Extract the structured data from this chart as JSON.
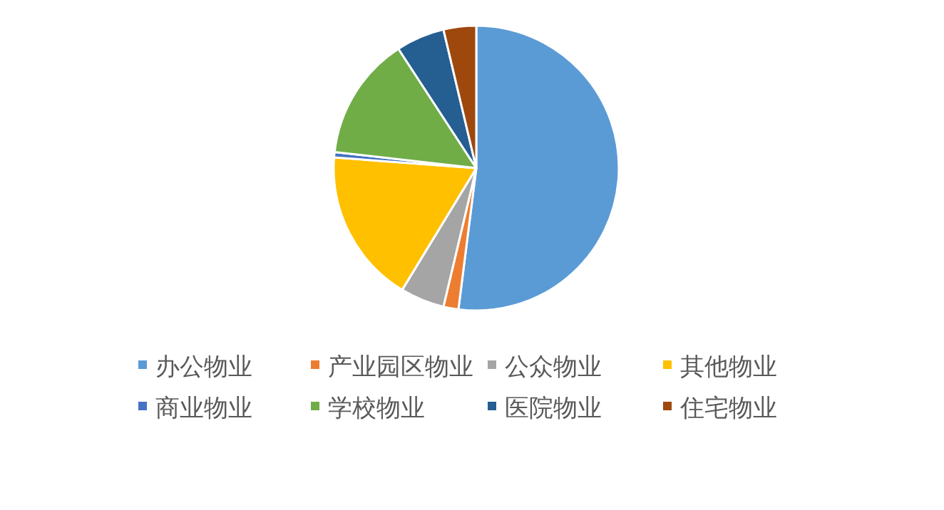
{
  "chart_data": {
    "type": "pie",
    "legend": "bottom",
    "categories": [
      "办公物业",
      "产业园区物业",
      "公众物业",
      "其他物业",
      "商业物业",
      "学校物业",
      "医院物业",
      "住宅物业"
    ],
    "values": [
      52,
      1.7,
      5,
      17.5,
      0.6,
      14,
      5.5,
      3.7
    ],
    "colors": [
      "#5b9bd5",
      "#ed7d31",
      "#a5a5a5",
      "#ffc000",
      "#4472c4",
      "#70ad47",
      "#255e91",
      "#9e480e"
    ]
  }
}
